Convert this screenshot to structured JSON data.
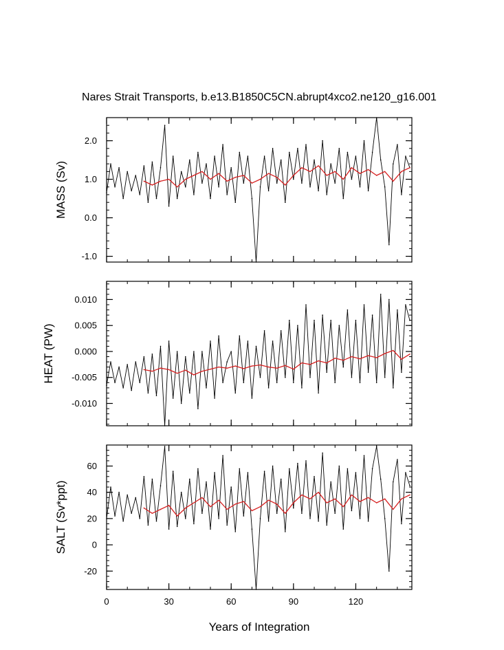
{
  "colors": {
    "raw": "#000000",
    "smoothed": "#d62020",
    "frame": "#000000"
  },
  "chart_data": [
    {
      "type": "line",
      "title": "Nares Strait Transports, b.e13.B1850C5CN.abrupt4xco2.ne120_g16.001",
      "ylabel": "MASS (Sv)",
      "xlim": [
        0,
        147
      ],
      "ylim": [
        -1.15,
        2.6
      ],
      "yticks": [
        -1.0,
        0.0,
        1.0,
        2.0
      ],
      "yticklabels": [
        "-1.0",
        "0.0",
        "1.0",
        "2.0"
      ],
      "xticks": [
        0,
        30,
        60,
        90,
        120
      ],
      "series": [
        {
          "role": "raw-monthly",
          "x": [
            0,
            2,
            4,
            6,
            8,
            10,
            12,
            14,
            16,
            18,
            20,
            22,
            24,
            26,
            28,
            30,
            32,
            34,
            36,
            38,
            40,
            42,
            44,
            46,
            48,
            50,
            52,
            54,
            56,
            58,
            60,
            62,
            64,
            66,
            68,
            70,
            72,
            74,
            76,
            78,
            80,
            82,
            84,
            86,
            88,
            90,
            92,
            94,
            96,
            98,
            100,
            102,
            104,
            106,
            108,
            110,
            112,
            114,
            116,
            118,
            120,
            122,
            124,
            126,
            128,
            130,
            132,
            134,
            136,
            138,
            140,
            142,
            144,
            146
          ],
          "y": [
            0.65,
            1.4,
            0.8,
            1.3,
            0.5,
            1.2,
            0.7,
            1.1,
            0.6,
            1.35,
            0.4,
            1.45,
            0.5,
            1.3,
            2.4,
            0.3,
            1.6,
            0.5,
            1.2,
            0.8,
            1.5,
            0.6,
            1.7,
            0.9,
            1.4,
            0.5,
            1.6,
            0.8,
            1.9,
            0.6,
            1.3,
            0.4,
            1.7,
            0.9,
            1.6,
            0.5,
            -1.15,
            0.8,
            1.6,
            0.7,
            1.8,
            0.9,
            1.5,
            0.4,
            1.7,
            1.0,
            1.8,
            0.9,
            1.9,
            0.8,
            1.5,
            0.7,
            2.0,
            0.6,
            1.4,
            0.9,
            1.8,
            0.5,
            1.7,
            1.0,
            1.6,
            0.8,
            2.0,
            0.7,
            1.7,
            2.6,
            1.5,
            0.8,
            -0.7,
            1.4,
            1.9,
            0.6,
            1.6,
            1.3
          ]
        },
        {
          "role": "smoothed",
          "x": [
            18,
            22,
            26,
            30,
            34,
            38,
            42,
            46,
            50,
            54,
            58,
            62,
            66,
            70,
            74,
            78,
            82,
            86,
            90,
            94,
            98,
            102,
            106,
            110,
            114,
            118,
            122,
            126,
            130,
            134,
            138,
            142,
            146
          ],
          "y": [
            0.95,
            0.85,
            0.95,
            1.0,
            0.8,
            1.0,
            1.1,
            1.2,
            1.0,
            1.15,
            0.95,
            1.05,
            1.1,
            0.9,
            1.0,
            1.15,
            1.05,
            0.85,
            1.1,
            1.3,
            1.2,
            1.35,
            1.1,
            1.2,
            1.0,
            1.3,
            1.15,
            1.25,
            1.1,
            1.2,
            0.95,
            1.2,
            1.3
          ]
        }
      ]
    },
    {
      "type": "line",
      "ylabel": "HEAT (PW)",
      "xlim": [
        0,
        147
      ],
      "ylim": [
        -0.0143,
        0.0135
      ],
      "yticks": [
        -0.01,
        -0.005,
        0.0,
        0.005,
        0.01
      ],
      "yticklabels": [
        "-0.010",
        "-0.005",
        "0.000",
        "0.005",
        "0.010"
      ],
      "xticks": [
        0,
        30,
        60,
        90,
        120
      ],
      "series": [
        {
          "role": "raw-monthly",
          "x": [
            0,
            2,
            4,
            6,
            8,
            10,
            12,
            14,
            16,
            18,
            20,
            22,
            24,
            26,
            28,
            30,
            32,
            34,
            36,
            38,
            40,
            42,
            44,
            46,
            48,
            50,
            52,
            54,
            56,
            58,
            60,
            62,
            64,
            66,
            68,
            70,
            72,
            74,
            76,
            78,
            80,
            82,
            84,
            86,
            88,
            90,
            92,
            94,
            96,
            98,
            100,
            102,
            104,
            106,
            108,
            110,
            112,
            114,
            116,
            118,
            120,
            122,
            124,
            126,
            128,
            130,
            132,
            134,
            136,
            138,
            140,
            142,
            144,
            146
          ],
          "y": [
            -0.0065,
            -0.002,
            -0.006,
            -0.003,
            -0.007,
            -0.0025,
            -0.0075,
            -0.002,
            -0.006,
            -0.001,
            -0.008,
            -0.0005,
            -0.0085,
            0.001,
            -0.0143,
            0.002,
            -0.009,
            0.0,
            -0.01,
            -0.001,
            -0.008,
            0.0,
            -0.011,
            0.0,
            -0.007,
            0.002,
            -0.009,
            0.003,
            -0.006,
            -0.002,
            0.0,
            -0.008,
            0.003,
            -0.006,
            0.002,
            -0.009,
            0.001,
            -0.005,
            0.004,
            -0.007,
            0.002,
            -0.006,
            0.004,
            -0.005,
            0.006,
            -0.006,
            0.005,
            -0.007,
            0.009,
            -0.005,
            0.006,
            -0.008,
            0.007,
            -0.004,
            0.006,
            -0.006,
            0.005,
            -0.003,
            0.008,
            -0.005,
            0.006,
            -0.006,
            0.009,
            -0.004,
            0.007,
            -0.006,
            0.011,
            -0.005,
            0.01,
            -0.007,
            0.008,
            -0.004,
            0.009,
            0.006
          ]
        },
        {
          "role": "smoothed",
          "x": [
            18,
            22,
            26,
            30,
            34,
            38,
            42,
            46,
            50,
            54,
            58,
            62,
            66,
            70,
            74,
            78,
            82,
            86,
            90,
            94,
            98,
            102,
            106,
            110,
            114,
            118,
            122,
            126,
            130,
            134,
            138,
            142,
            146
          ],
          "y": [
            -0.0035,
            -0.0038,
            -0.0032,
            -0.0035,
            -0.0042,
            -0.0036,
            -0.0045,
            -0.0038,
            -0.0034,
            -0.003,
            -0.0032,
            -0.0028,
            -0.0033,
            -0.0028,
            -0.0026,
            -0.003,
            -0.0032,
            -0.0027,
            -0.0034,
            -0.0022,
            -0.0025,
            -0.0018,
            -0.0022,
            -0.0013,
            -0.0017,
            -0.001,
            -0.0014,
            -0.0008,
            -0.0012,
            -0.0004,
            0.0002,
            -0.0015,
            -0.0005
          ]
        }
      ]
    },
    {
      "type": "line",
      "ylabel": "SALT (Sv*ppt)",
      "xlim": [
        0,
        147
      ],
      "ylim": [
        -34,
        76
      ],
      "yticks": [
        -20,
        0,
        20,
        40,
        60
      ],
      "yticklabels": [
        "-20",
        "0",
        "20",
        "40",
        "60"
      ],
      "xticks": [
        0,
        30,
        60,
        90,
        120
      ],
      "xticklabels": [
        "0",
        "30",
        "60",
        "90",
        "120"
      ],
      "xlabel": "Years of Integration",
      "series": [
        {
          "role": "raw-monthly",
          "x": [
            0,
            2,
            4,
            6,
            8,
            10,
            12,
            14,
            16,
            18,
            20,
            22,
            24,
            26,
            28,
            30,
            32,
            34,
            36,
            38,
            40,
            42,
            44,
            46,
            48,
            50,
            52,
            54,
            56,
            58,
            60,
            62,
            64,
            66,
            68,
            70,
            72,
            74,
            76,
            78,
            80,
            82,
            84,
            86,
            88,
            90,
            92,
            94,
            96,
            98,
            100,
            102,
            104,
            106,
            108,
            110,
            112,
            114,
            116,
            118,
            120,
            122,
            124,
            126,
            128,
            130,
            132,
            134,
            136,
            138,
            140,
            142,
            144,
            146
          ],
          "y": [
            20,
            44,
            22,
            40,
            18,
            38,
            24,
            36,
            20,
            52,
            15,
            50,
            18,
            45,
            75,
            12,
            56,
            14,
            40,
            20,
            50,
            16,
            58,
            24,
            48,
            12,
            55,
            20,
            68,
            15,
            44,
            10,
            58,
            22,
            55,
            12,
            -34,
            20,
            56,
            18,
            60,
            24,
            50,
            10,
            58,
            28,
            62,
            24,
            64,
            20,
            52,
            18,
            70,
            15,
            48,
            24,
            60,
            12,
            58,
            26,
            55,
            20,
            68,
            18,
            58,
            75,
            50,
            20,
            -20,
            48,
            65,
            16,
            55,
            45
          ]
        },
        {
          "role": "smoothed",
          "x": [
            18,
            22,
            26,
            30,
            34,
            38,
            42,
            46,
            50,
            54,
            58,
            62,
            66,
            70,
            74,
            78,
            82,
            86,
            90,
            94,
            98,
            102,
            106,
            110,
            114,
            118,
            122,
            126,
            130,
            134,
            138,
            142,
            146
          ],
          "y": [
            28,
            24,
            27,
            30,
            22,
            28,
            32,
            36,
            29,
            34,
            27,
            31,
            33,
            26,
            29,
            34,
            31,
            24,
            32,
            38,
            35,
            40,
            32,
            35,
            29,
            38,
            33,
            36,
            32,
            35,
            27,
            35,
            38
          ]
        }
      ]
    }
  ]
}
